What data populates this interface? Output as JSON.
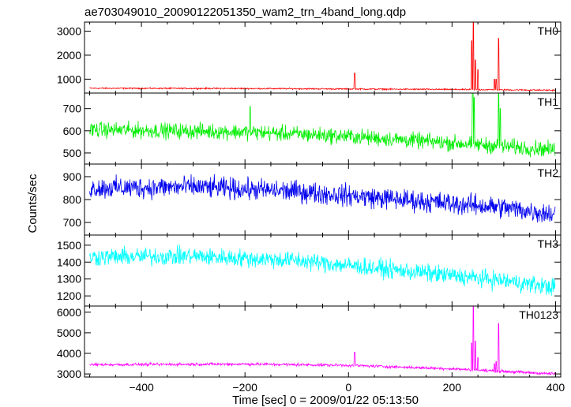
{
  "title": "ae703049010_20090122051350_wam2_trn_4band_long.qdp",
  "xlabel": "Time [sec] 0 = 2009/01/22 05:13:50",
  "ylabel": "Counts/sec",
  "chart_data": {
    "type": "line",
    "title": "ae703049010_20090122051350_wam2_trn_4band_long.qdp",
    "xlabel": "Time [sec] 0 = 2009/01/22 05:13:50",
    "ylabel": "Counts/sec",
    "xlim": [
      -510,
      410
    ],
    "x_ticks": [
      -400,
      -200,
      0,
      200,
      400
    ],
    "grid": false,
    "panels": [
      {
        "name": "TH0",
        "color": "#ff0000",
        "ylim": [
          420,
          3380
        ],
        "y_ticks": [
          1000,
          2000,
          3000
        ],
        "baseline": [
          [
            -500,
            620
          ],
          [
            -200,
            610
          ],
          [
            0,
            590
          ],
          [
            200,
            570
          ],
          [
            400,
            540
          ]
        ],
        "noise": 25,
        "spikes": [
          [
            12,
            1250
          ],
          [
            238,
            2600
          ],
          [
            241,
            3350
          ],
          [
            245,
            1800
          ],
          [
            250,
            1400
          ],
          [
            282,
            1000
          ],
          [
            285,
            1000
          ],
          [
            290,
            2700
          ]
        ]
      },
      {
        "name": "TH1",
        "color": "#00ee00",
        "ylim": [
          450,
          770
        ],
        "y_ticks": [
          500,
          600,
          700
        ],
        "baseline": [
          [
            -500,
            605
          ],
          [
            -200,
            595
          ],
          [
            0,
            575
          ],
          [
            200,
            545
          ],
          [
            400,
            515
          ]
        ],
        "noise": 30,
        "spikes": [
          [
            -190,
            710
          ],
          [
            240,
            770
          ],
          [
            243,
            750
          ],
          [
            290,
            770
          ],
          [
            293,
            700
          ]
        ]
      },
      {
        "name": "TH2",
        "color": "#0000ee",
        "ylim": [
          645,
          955
        ],
        "y_ticks": [
          700,
          800,
          900
        ],
        "baseline": [
          [
            -500,
            850
          ],
          [
            -300,
            855
          ],
          [
            -100,
            835
          ],
          [
            100,
            800
          ],
          [
            300,
            765
          ],
          [
            400,
            735
          ]
        ],
        "noise": 40,
        "spikes": []
      },
      {
        "name": "TH3",
        "color": "#00ffff",
        "ylim": [
          1140,
          1560
        ],
        "y_ticks": [
          1200,
          1300,
          1400,
          1500
        ],
        "baseline": [
          [
            -500,
            1430
          ],
          [
            -300,
            1435
          ],
          [
            -100,
            1410
          ],
          [
            100,
            1350
          ],
          [
            300,
            1290
          ],
          [
            400,
            1250
          ]
        ],
        "noise": 45,
        "spikes": []
      },
      {
        "name": "TH0123",
        "color": "#ff00ff",
        "ylim": [
          2850,
          6300
        ],
        "y_ticks": [
          3000,
          4000,
          5000,
          6000
        ],
        "baseline": [
          [
            -500,
            3450
          ],
          [
            -200,
            3480
          ],
          [
            0,
            3420
          ],
          [
            200,
            3250
          ],
          [
            400,
            3000
          ]
        ],
        "noise": 60,
        "spikes": [
          [
            12,
            4050
          ],
          [
            238,
            4500
          ],
          [
            241,
            6300
          ],
          [
            245,
            4600
          ],
          [
            250,
            3800
          ],
          [
            282,
            3500
          ],
          [
            285,
            3600
          ],
          [
            290,
            5450
          ]
        ]
      }
    ]
  }
}
